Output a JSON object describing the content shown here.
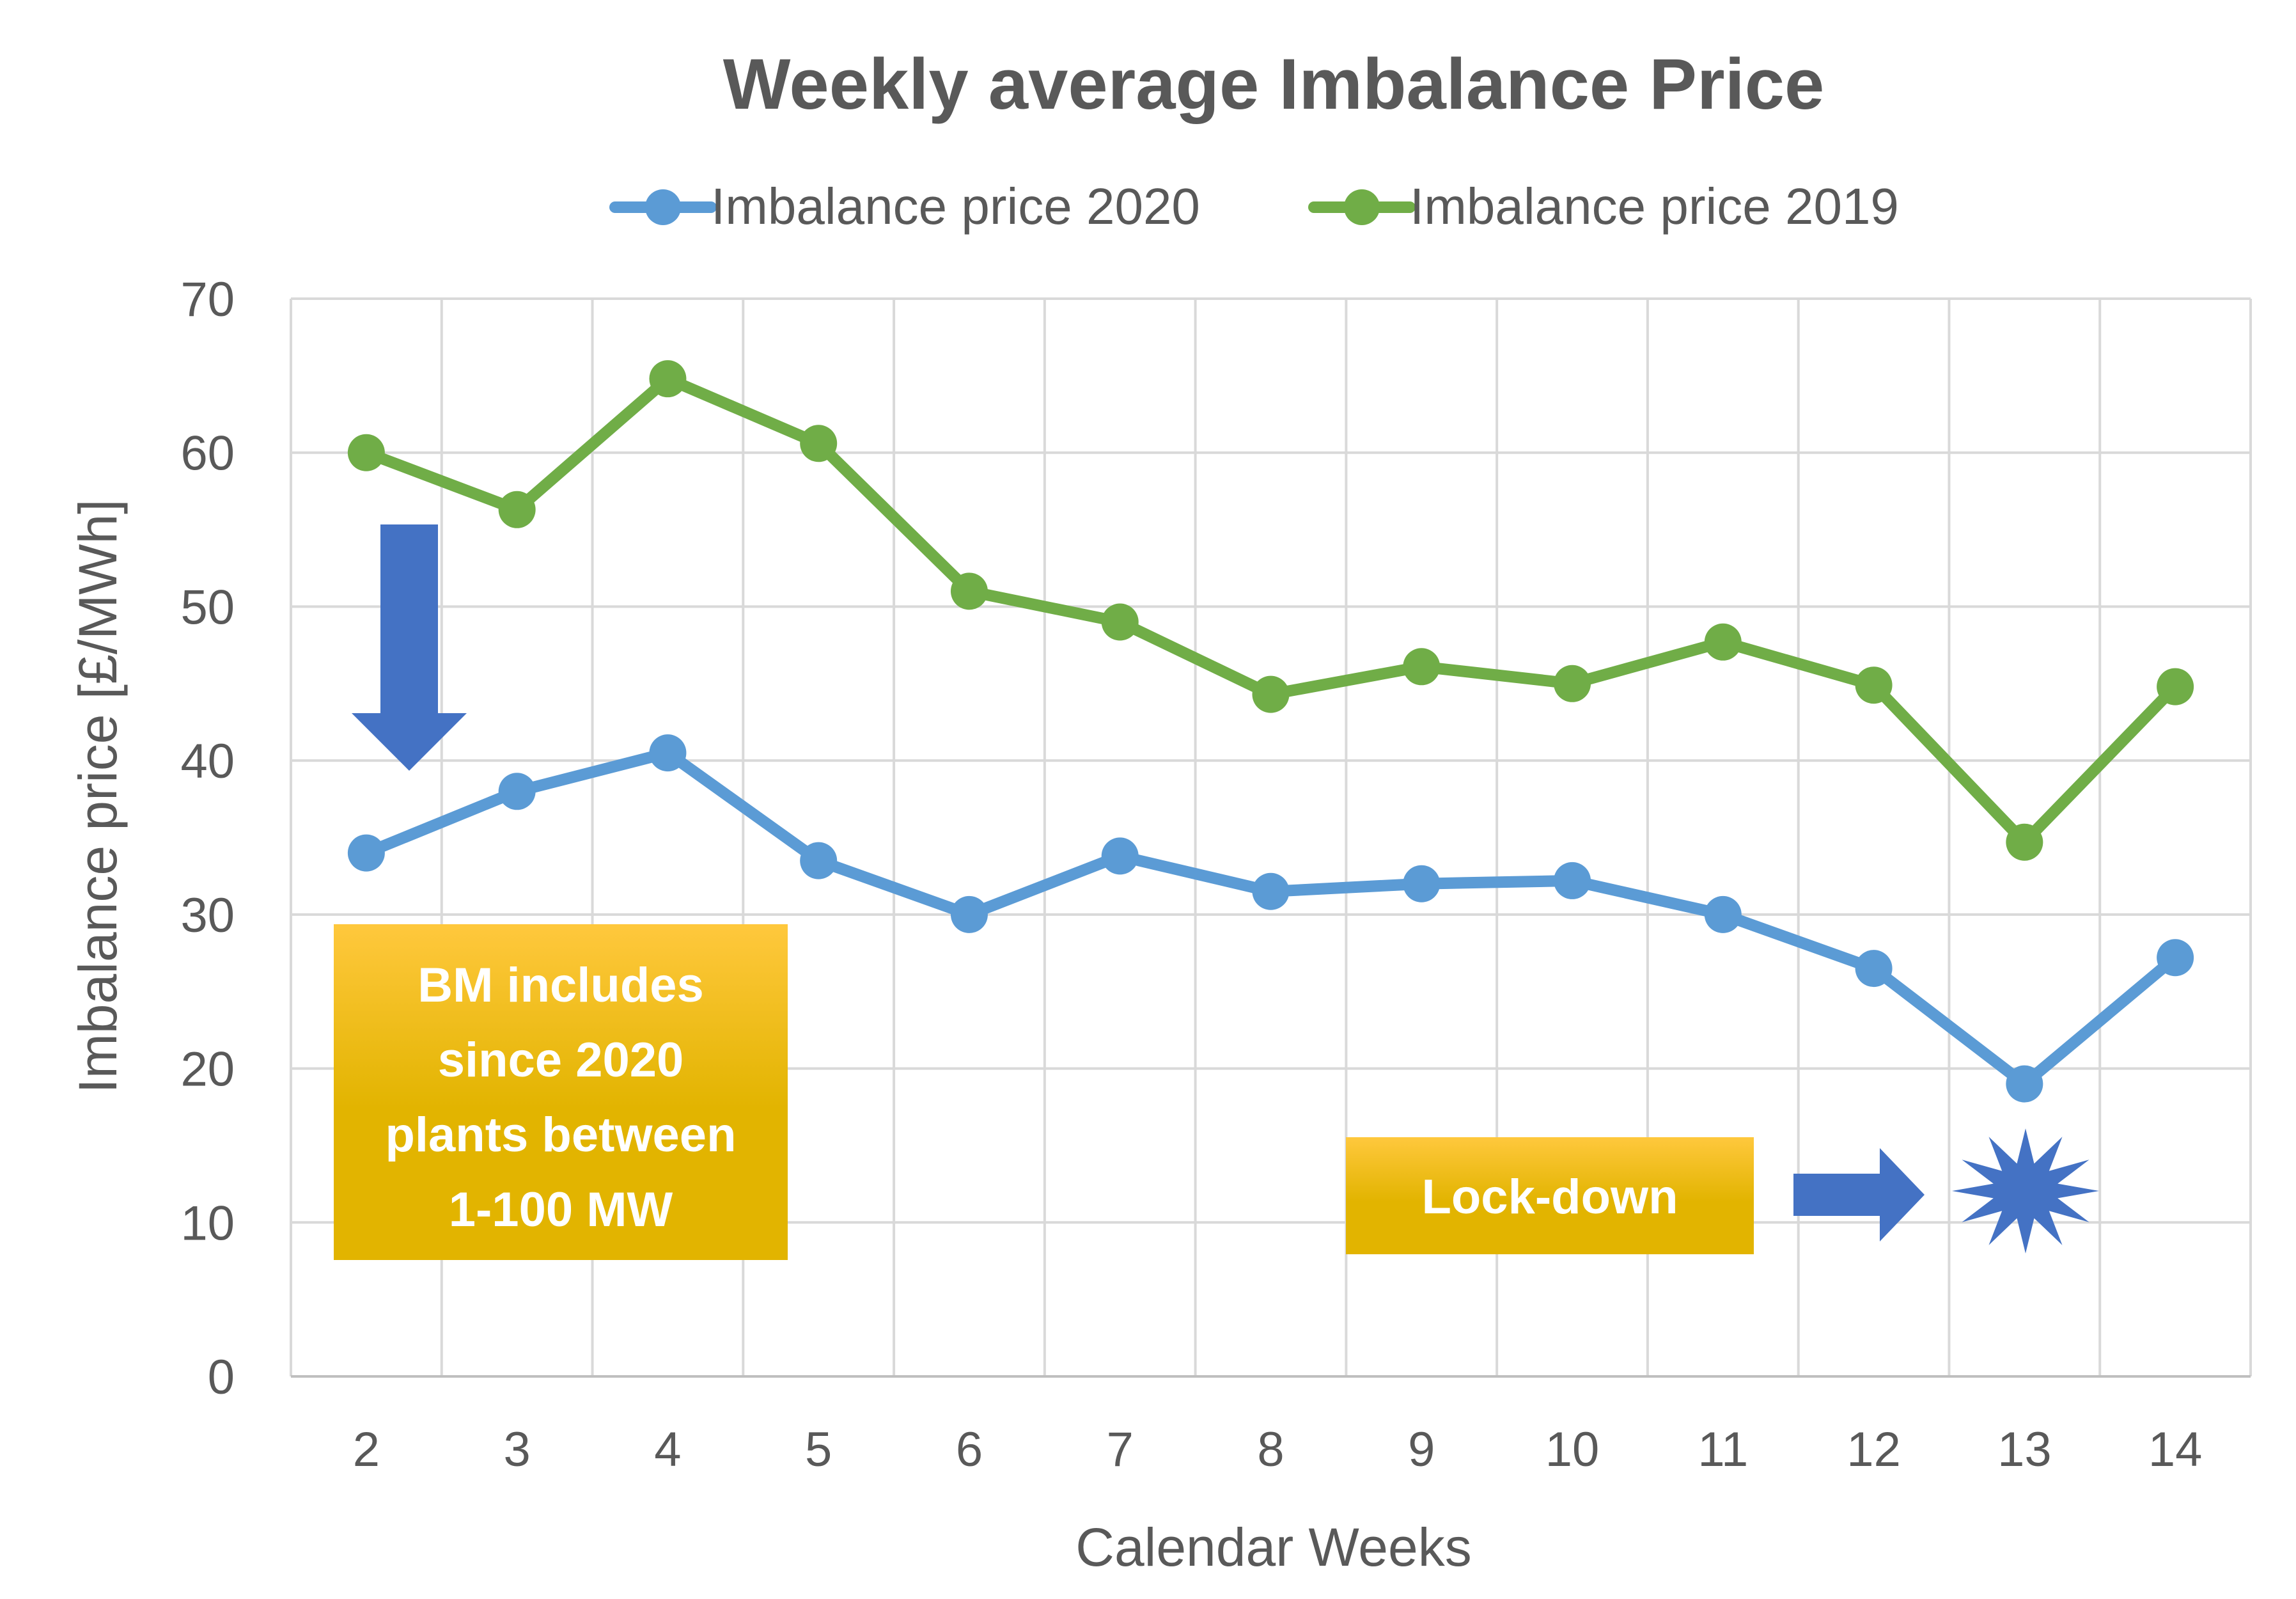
{
  "chart_data": {
    "type": "line",
    "title": "Weekly average Imbalance Price",
    "xlabel": "Calendar Weeks",
    "ylabel": "Imbalance price [£/MWh]",
    "ylim": [
      0,
      70
    ],
    "yticks": [
      0,
      10,
      20,
      30,
      40,
      50,
      60,
      70
    ],
    "grid": true,
    "legend_position": "top",
    "categories": [
      "2",
      "3",
      "4",
      "5",
      "6",
      "7",
      "8",
      "9",
      "10",
      "11",
      "12",
      "13",
      "14"
    ],
    "series": [
      {
        "name": "Imbalance price 2020",
        "color": "#5B9BD5",
        "values": [
          34.0,
          38.0,
          40.5,
          33.5,
          30.0,
          33.8,
          31.5,
          32.0,
          32.2,
          30.0,
          26.5,
          19.0,
          27.2
        ]
      },
      {
        "name": "Imbalance price 2019",
        "color": "#70AD47",
        "values": [
          60.0,
          56.3,
          64.8,
          60.6,
          51.0,
          49.0,
          44.3,
          46.1,
          45.0,
          47.7,
          44.9,
          34.7,
          44.8
        ]
      }
    ],
    "annotations": [
      {
        "name": "bm-note",
        "lines": [
          "BM includes",
          "since 2020",
          "plants between",
          "1-100 MW"
        ]
      },
      {
        "name": "lockdown-note",
        "lines": [
          "Lock-down"
        ]
      }
    ],
    "colors": {
      "axis_text": "#595959",
      "grid": "#D9D9D9",
      "arrow": "#4472C4",
      "note_box_top": "#FFC83D",
      "note_box_bottom": "#E2B400"
    }
  }
}
